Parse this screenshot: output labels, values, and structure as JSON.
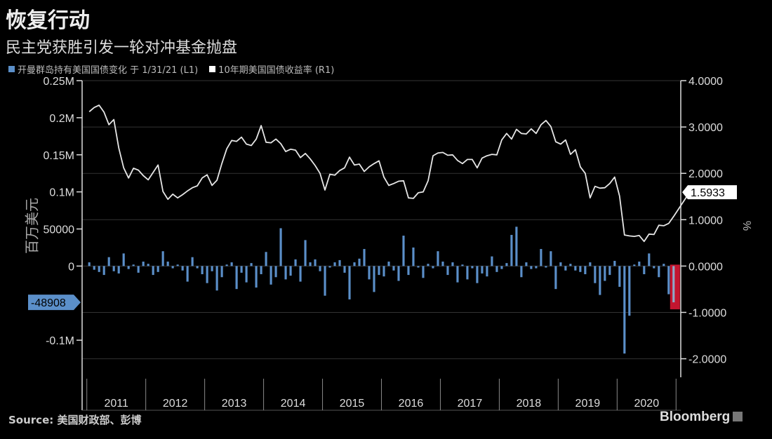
{
  "title": "恢复行动",
  "subtitle": "民主党获胜引发一轮对冲基金抛盘",
  "legend": [
    {
      "label": "开曼群岛持有美国国债变化 于 1/31/21 (L1)",
      "color": "#5b8fc9"
    },
    {
      "label": "10年期美国国债收益率 (R1)",
      "color": "#ffffff"
    }
  ],
  "source": "Source: 美国财政部、彭博",
  "brand": "Bloomberg",
  "chart_data": {
    "type": "bar",
    "y_left_label": "百万美元",
    "y_right_label": "%",
    "y_left_ticks": [
      "0.25M",
      "0.2M",
      "0.15M",
      "0.1M",
      "50000",
      "0",
      "-0.1M"
    ],
    "y_left_tick_values": [
      250000,
      200000,
      150000,
      100000,
      50000,
      0,
      -100000
    ],
    "y_left_range": [
      -150000,
      250000
    ],
    "y_right_ticks": [
      "4.0000",
      "3.0000",
      "2.0000",
      "1.0000",
      "0.0000",
      "-1.0000",
      "-2.0000"
    ],
    "y_right_tick_values": [
      4,
      3,
      2,
      1,
      0,
      -1,
      -2
    ],
    "y_right_range": [
      -2.4,
      4.0
    ],
    "x_labels": [
      "2011",
      "2012",
      "2013",
      "2014",
      "2015",
      "2016",
      "2017",
      "2018",
      "2019",
      "2020"
    ],
    "x_range": [
      2010.92,
      2021.08
    ],
    "last_bar_label": "-48908",
    "last_yield_label": "1.5933",
    "series": [
      {
        "name": "开曼群岛持有美国国债变化 于 1/31/21 (L1)",
        "type": "bar",
        "color": "#5b8fc9",
        "highlight_last": "#c3152f",
        "values": [
          5000,
          -5000,
          -8000,
          -12000,
          12000,
          -7000,
          -10000,
          17000,
          -4000,
          2000,
          -9000,
          6000,
          3000,
          -12000,
          -8000,
          20000,
          6000,
          -3000,
          2000,
          -6000,
          -21000,
          12000,
          -3000,
          -11000,
          -23000,
          -7000,
          -33000,
          -15000,
          2000,
          5000,
          -31000,
          -9000,
          -22000,
          4000,
          -29000,
          -11000,
          19000,
          -25000,
          -15000,
          51000,
          -18000,
          -13000,
          9000,
          -21000,
          35000,
          5000,
          9000,
          -7000,
          -40000,
          -2000,
          5000,
          8000,
          -9000,
          -45000,
          5000,
          10000,
          23000,
          -18000,
          -35000,
          -12000,
          -14000,
          6000,
          -6000,
          -20000,
          41000,
          -12000,
          25000,
          -2000,
          -16000,
          3000,
          -3000,
          20000,
          6000,
          -12000,
          5000,
          -22000,
          2000,
          -18000,
          -3000,
          -23000,
          -10000,
          -14000,
          13000,
          -8000,
          -4000,
          4000,
          42000,
          53000,
          -15000,
          5000,
          -4000,
          -3000,
          23000,
          -2000,
          20000,
          -31000,
          5000,
          -6000,
          3000,
          -6000,
          -8000,
          -11000,
          5000,
          -23000,
          -39000,
          -20000,
          -12000,
          7000,
          -28000,
          -118000,
          -67000,
          2000,
          6000,
          -11000,
          17000,
          -3000,
          -15000,
          3000,
          -38000,
          -48908
        ]
      },
      {
        "name": "10年期美国国债收益率 (R1)",
        "type": "line",
        "color": "#e6e6e6",
        "values": [
          3.33,
          3.42,
          3.47,
          3.32,
          3.05,
          3.16,
          2.55,
          2.12,
          1.9,
          2.11,
          2.07,
          1.95,
          1.86,
          2.02,
          2.18,
          1.61,
          1.44,
          1.55,
          1.47,
          1.54,
          1.62,
          1.69,
          1.73,
          1.9,
          1.97,
          1.74,
          1.85,
          2.21,
          2.53,
          2.71,
          2.69,
          2.78,
          2.63,
          2.6,
          2.74,
          3.03,
          2.67,
          2.66,
          2.74,
          2.64,
          2.47,
          2.52,
          2.5,
          2.34,
          2.43,
          2.31,
          2.17,
          2.0,
          1.64,
          1.98,
          1.96,
          2.06,
          2.12,
          2.35,
          2.18,
          2.2,
          2.04,
          2.14,
          2.21,
          2.27,
          1.92,
          1.74,
          1.78,
          1.83,
          1.84,
          1.47,
          1.46,
          1.58,
          1.6,
          1.84,
          2.38,
          2.44,
          2.45,
          2.39,
          2.4,
          2.28,
          2.21,
          2.3,
          2.3,
          2.12,
          2.33,
          2.38,
          2.41,
          2.4,
          2.72,
          2.86,
          2.74,
          2.95,
          2.86,
          2.85,
          2.96,
          2.86,
          3.05,
          3.14,
          3.01,
          2.68,
          2.63,
          2.72,
          2.41,
          2.51,
          2.14,
          2.0,
          1.47,
          1.72,
          1.68,
          1.69,
          1.78,
          1.92,
          1.51,
          0.67,
          0.65,
          0.64,
          0.66,
          0.53,
          0.69,
          0.68,
          0.88,
          0.87,
          0.92,
          1.07
        ],
        "x_end": 2021.23,
        "final_value": 1.5933
      }
    ]
  }
}
